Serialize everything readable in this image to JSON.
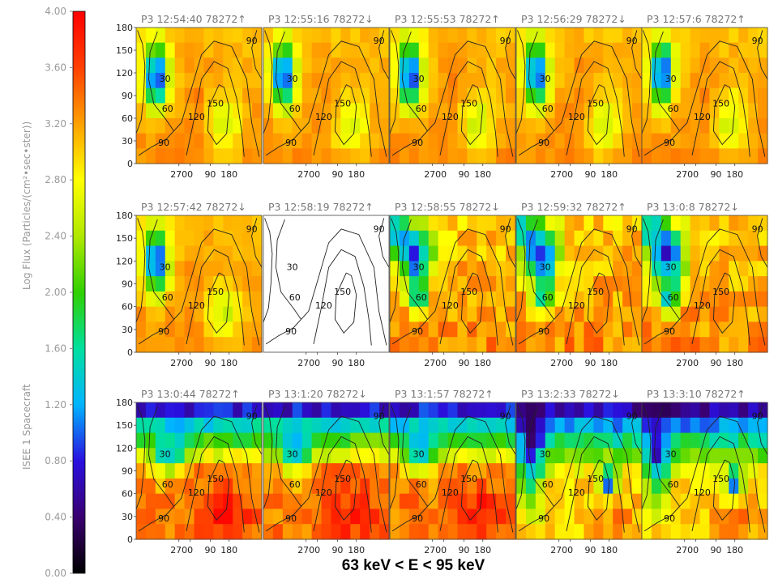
{
  "colorbar": {
    "ticks": [
      "4.00",
      "3.60",
      "3.20",
      "2.80",
      "2.40",
      "2.00",
      "1.60",
      "1.20",
      "0.80",
      "0.40",
      "0.00"
    ],
    "label_left": "ISEE 1 Spacecraft",
    "label_right": "Log Flux (Particles/(cm²•sec•ster))"
  },
  "bottom_title": "63 keV < E < 95 keV",
  "chart_data": {
    "type": "heatmap",
    "vmin": 0.0,
    "vmax": 4.0,
    "x_ticks": [
      "270",
      "0",
      "90",
      "180"
    ],
    "y_ticks": [
      "0",
      "30",
      "60",
      "90",
      "120",
      "150",
      "180"
    ],
    "ylim": [
      0,
      180
    ],
    "contour_levels": [
      "30",
      "60",
      "90",
      "120",
      "150"
    ],
    "panels": [
      {
        "title": "P3 12:54:40 78272↑",
        "field": "quiet"
      },
      {
        "title": "P3 12:55:16 78272↓",
        "field": "quiet"
      },
      {
        "title": "P3 12:55:53 78272↑",
        "field": "quiet"
      },
      {
        "title": "P3 12:56:29 78272↓",
        "field": "quiet"
      },
      {
        "title": "P3 12:57:6 78272↑",
        "field": "quiet"
      },
      {
        "title": "P3 12:57:42 78272↓",
        "field": "quiet"
      },
      {
        "title": "P3 12:58:19 78272↑",
        "field": "none"
      },
      {
        "title": "P3 12:58:55 78272↓",
        "field": "patchy"
      },
      {
        "title": "P3 12:59:32 78272↑",
        "field": "patchy"
      },
      {
        "title": "P3 13:0:8 78272↓",
        "field": "patchy"
      },
      {
        "title": "P3 13:0:44 78272↑",
        "field": "depleted"
      },
      {
        "title": "P3 13:1:20 78272↓",
        "field": "depleted"
      },
      {
        "title": "P3 13:1:57 78272↑",
        "field": "depleted"
      },
      {
        "title": "P3 13:2:33 78272↓",
        "field": "depleted2"
      },
      {
        "title": "P3 13:3:10 78272↑",
        "field": "depleted2"
      }
    ]
  }
}
